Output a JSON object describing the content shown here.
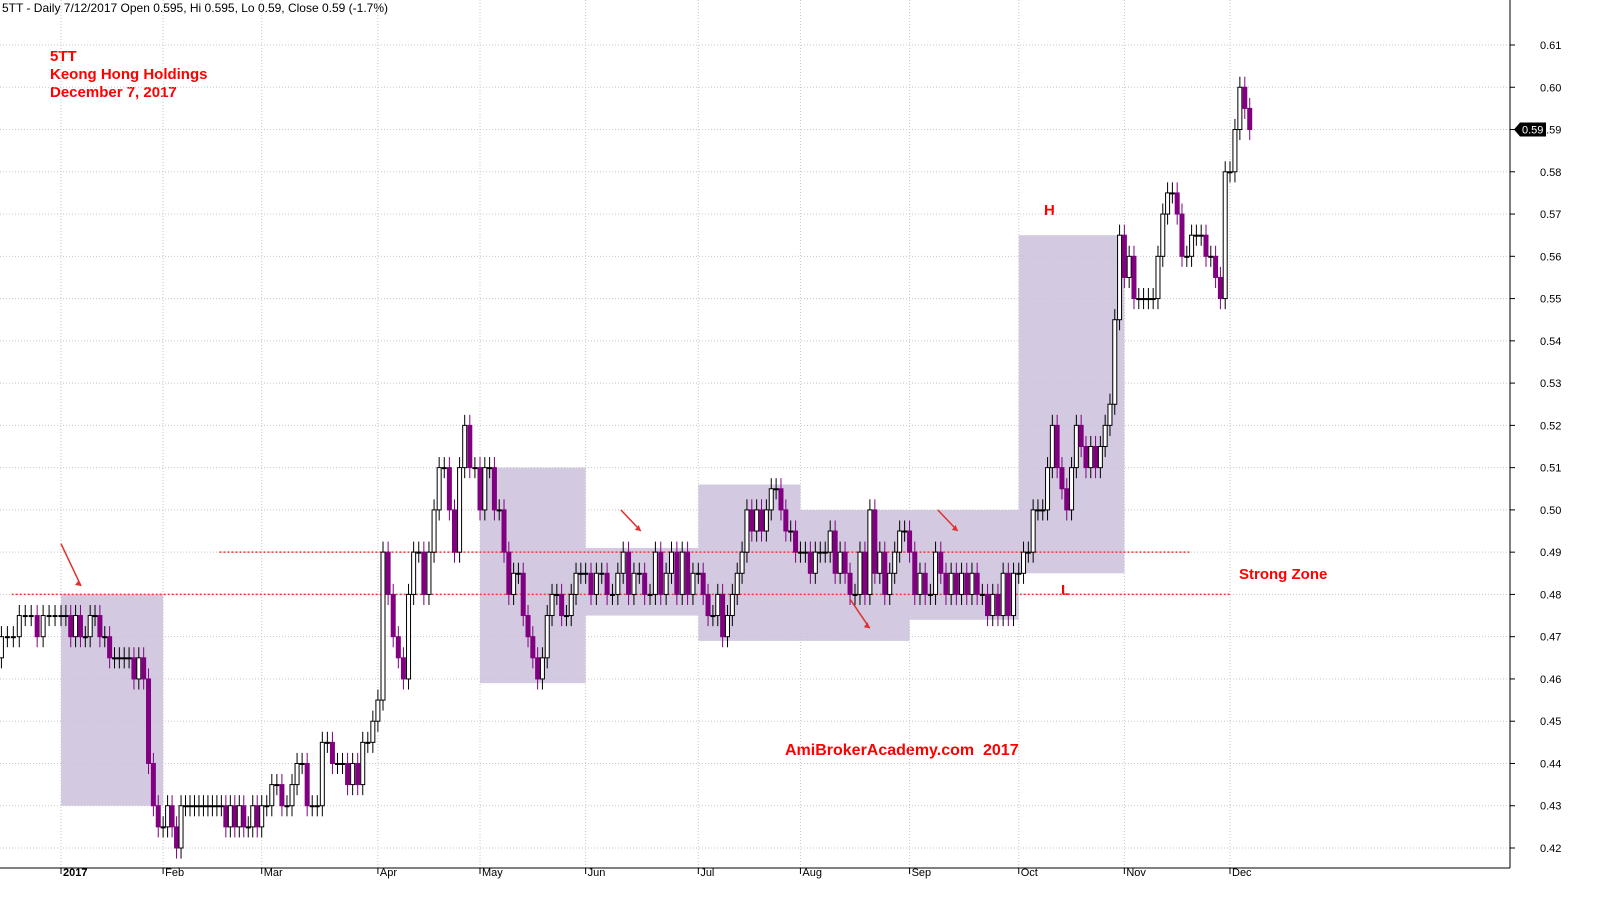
{
  "header": {
    "text": "5TT - Daily 7/12/2017 Open 0.595, Hi 0.595, Lo 0.59, Close 0.59 (-1.7%)"
  },
  "title_block": {
    "ticker": "5TT",
    "company": "Keong Hong Holdings",
    "date": "December 7, 2017"
  },
  "annotations": {
    "high": "H",
    "low": "L",
    "zone": "Strong Zone",
    "watermark": "AmiBrokerAcademy.com  2017"
  },
  "colors": {
    "up_candle_fill": "#ffffff",
    "up_candle_stroke": "#000000",
    "down_candle": "#800080",
    "box_fill": "#cbc0dc",
    "support_line": "#ff3030",
    "annotation": "#ff0000",
    "grid": "#c8c8c8"
  },
  "chart_data": {
    "type": "candlestick",
    "y_axis": {
      "min": 0.42,
      "max": 0.61,
      "ticks": [
        0.42,
        0.43,
        0.44,
        0.45,
        0.46,
        0.47,
        0.48,
        0.49,
        0.5,
        0.51,
        0.52,
        0.53,
        0.54,
        0.55,
        0.56,
        0.57,
        0.58,
        0.59,
        0.6,
        0.61
      ],
      "position": "right"
    },
    "x_axis": {
      "months": [
        {
          "label": "2017",
          "date": "2017-01-03",
          "bold": true
        },
        {
          "label": "Feb",
          "date": "2017-02-01"
        },
        {
          "label": "Mar",
          "date": "2017-03-01"
        },
        {
          "label": "Apr",
          "date": "2017-04-03"
        },
        {
          "label": "May",
          "date": "2017-05-02"
        },
        {
          "label": "Jun",
          "date": "2017-06-01"
        },
        {
          "label": "Jul",
          "date": "2017-07-03"
        },
        {
          "label": "Aug",
          "date": "2017-08-01"
        },
        {
          "label": "Sep",
          "date": "2017-09-01"
        },
        {
          "label": "Oct",
          "date": "2017-10-02"
        },
        {
          "label": "Nov",
          "date": "2017-11-01"
        },
        {
          "label": "Dec",
          "date": "2017-12-01"
        }
      ]
    },
    "last_price": {
      "value": 0.59,
      "label": "0.59"
    },
    "grid": true,
    "consolidation_boxes": [
      {
        "start": "2017-01-03",
        "end": "2017-02-01",
        "low": 0.43,
        "high": 0.48
      },
      {
        "start": "2017-05-02",
        "end": "2017-06-01",
        "low": 0.459,
        "high": 0.51
      },
      {
        "start": "2017-06-01",
        "end": "2017-07-03",
        "low": 0.475,
        "high": 0.491
      },
      {
        "start": "2017-07-03",
        "end": "2017-08-01",
        "low": 0.469,
        "high": 0.506
      },
      {
        "start": "2017-08-01",
        "end": "2017-09-01",
        "low": 0.469,
        "high": 0.5
      },
      {
        "start": "2017-09-01",
        "end": "2017-10-02",
        "low": 0.474,
        "high": 0.5
      },
      {
        "start": "2017-10-02",
        "end": "2017-11-01",
        "low": 0.485,
        "high": 0.565
      }
    ],
    "support_lines": [
      {
        "value": 0.49,
        "start": "2017-02-17",
        "end": "2017-11-20"
      },
      {
        "value": 0.48,
        "start": "2016-12-20",
        "end": "2017-12-01"
      }
    ],
    "arrows": [
      {
        "date": "2017-01-03",
        "from": 0.492,
        "to": 0.482
      },
      {
        "date": "2017-06-11",
        "from": 0.5,
        "to": 0.495
      },
      {
        "date": "2017-09-09",
        "from": 0.5,
        "to": 0.495
      },
      {
        "date": "2017-08-15",
        "from": 0.479,
        "to": 0.472
      }
    ],
    "segments": [
      {
        "start": "2016-12-12",
        "days": 13,
        "values": [
          0.47,
          0.465,
          0.465,
          0.47,
          0.47,
          0.47,
          0.475,
          0.475,
          0.475,
          0.47,
          0.475,
          0.475,
          0.475
        ]
      },
      {
        "start": "2017-01-03",
        "days": 21,
        "values": [
          0.475,
          0.475,
          0.47,
          0.475,
          0.47,
          0.47,
          0.475,
          0.475,
          0.47,
          0.47,
          0.465,
          0.465,
          0.465,
          0.465,
          0.465,
          0.46,
          0.465,
          0.46,
          0.44,
          0.43,
          0.425
        ]
      },
      {
        "start": "2017-02-01",
        "days": 22,
        "values": [
          0.425,
          0.43,
          0.425,
          0.42,
          0.43,
          0.43,
          0.43,
          0.43,
          0.43,
          0.43,
          0.43,
          0.43,
          0.43,
          0.43,
          0.425,
          0.43,
          0.425,
          0.43,
          0.425,
          0.425,
          0.43,
          0.425
        ]
      },
      {
        "start": "2017-03-01",
        "days": 23,
        "values": [
          0.43,
          0.43,
          0.435,
          0.435,
          0.43,
          0.43,
          0.435,
          0.44,
          0.44,
          0.43,
          0.43,
          0.43,
          0.445,
          0.445,
          0.44,
          0.44,
          0.44,
          0.435,
          0.44,
          0.435,
          0.445,
          0.445,
          0.45
        ]
      },
      {
        "start": "2017-04-03",
        "days": 20,
        "values": [
          0.455,
          0.49,
          0.48,
          0.47,
          0.465,
          0.46,
          0.48,
          0.49,
          0.49,
          0.48,
          0.49,
          0.5,
          0.51,
          0.51,
          0.5,
          0.49,
          0.51,
          0.52,
          0.51,
          0.51
        ]
      },
      {
        "start": "2017-05-02",
        "days": 22,
        "values": [
          0.5,
          0.51,
          0.51,
          0.5,
          0.5,
          0.49,
          0.48,
          0.485,
          0.485,
          0.475,
          0.47,
          0.465,
          0.46,
          0.465,
          0.475,
          0.48,
          0.48,
          0.475,
          0.475,
          0.48,
          0.485,
          0.485
        ]
      },
      {
        "start": "2017-06-01",
        "days": 21,
        "values": [
          0.485,
          0.48,
          0.485,
          0.485,
          0.48,
          0.48,
          0.485,
          0.49,
          0.48,
          0.485,
          0.485,
          0.48,
          0.48,
          0.49,
          0.48,
          0.485,
          0.49,
          0.48,
          0.49,
          0.48,
          0.485
        ]
      },
      {
        "start": "2017-07-03",
        "days": 21,
        "values": [
          0.485,
          0.48,
          0.475,
          0.475,
          0.48,
          0.47,
          0.475,
          0.48,
          0.485,
          0.49,
          0.5,
          0.495,
          0.5,
          0.495,
          0.5,
          0.505,
          0.505,
          0.5,
          0.495,
          0.495,
          0.49
        ]
      },
      {
        "start": "2017-08-01",
        "days": 22,
        "values": [
          0.49,
          0.49,
          0.485,
          0.49,
          0.49,
          0.49,
          0.495,
          0.485,
          0.49,
          0.485,
          0.48,
          0.48,
          0.49,
          0.48,
          0.5,
          0.485,
          0.49,
          0.48,
          0.485,
          0.49,
          0.495,
          0.495
        ]
      },
      {
        "start": "2017-09-01",
        "days": 21,
        "values": [
          0.49,
          0.48,
          0.485,
          0.48,
          0.48,
          0.49,
          0.485,
          0.48,
          0.485,
          0.48,
          0.485,
          0.48,
          0.485,
          0.48,
          0.48,
          0.475,
          0.48,
          0.475,
          0.485,
          0.475,
          0.485
        ]
      },
      {
        "start": "2017-10-02",
        "days": 22,
        "values": [
          0.485,
          0.49,
          0.49,
          0.5,
          0.5,
          0.5,
          0.51,
          0.52,
          0.51,
          0.505,
          0.5,
          0.51,
          0.52,
          0.515,
          0.51,
          0.515,
          0.51,
          0.515,
          0.52,
          0.525,
          0.545,
          0.565
        ]
      },
      {
        "start": "2017-11-01",
        "days": 22,
        "values": [
          0.555,
          0.56,
          0.55,
          0.55,
          0.55,
          0.55,
          0.55,
          0.56,
          0.57,
          0.575,
          0.575,
          0.57,
          0.56,
          0.56,
          0.565,
          0.565,
          0.565,
          0.56,
          0.56,
          0.555,
          0.55,
          0.58
        ]
      },
      {
        "start": "2017-12-01",
        "days": 5,
        "values": [
          0.58,
          0.59,
          0.6,
          0.595,
          0.59
        ]
      }
    ]
  }
}
